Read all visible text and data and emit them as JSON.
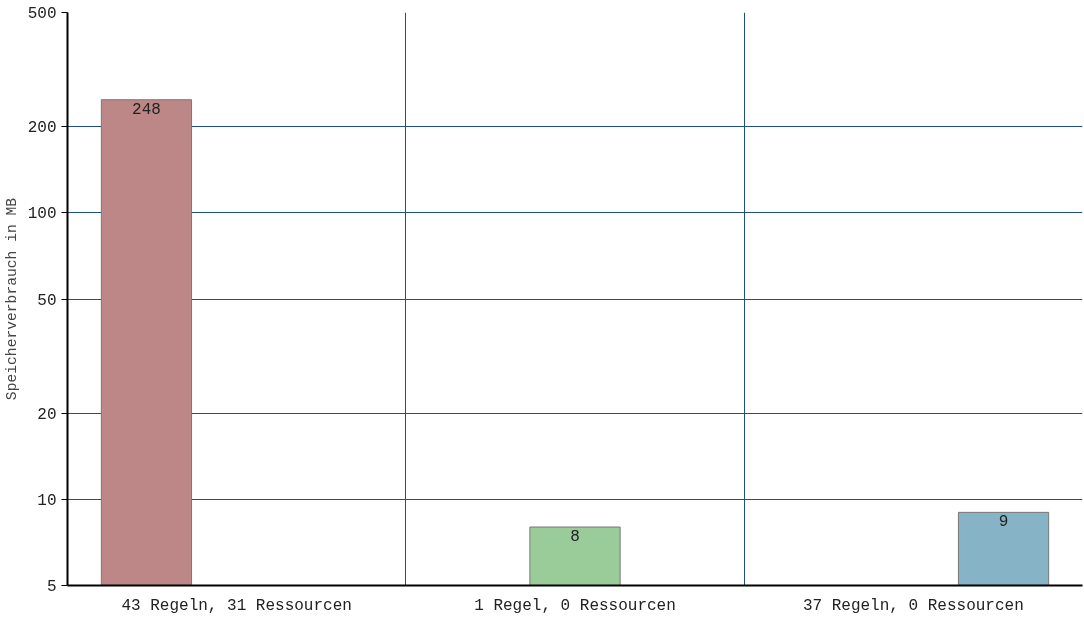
{
  "chart_data": {
    "type": "bar",
    "ylabel": "Speicherverbrauch in MB",
    "categories": [
      "43 Regeln, 31 Ressourcen",
      "1 Regel, 0 Ressourcen",
      "37 Regeln, 0 Ressourcen"
    ],
    "series": [
      {
        "color": "#bc8786",
        "values": [
          248,
          null,
          null
        ]
      },
      {
        "color": "#99cc99",
        "values": [
          null,
          8,
          null
        ]
      },
      {
        "color": "#86b3c5",
        "values": [
          null,
          null,
          9
        ]
      }
    ],
    "log": true,
    "ylim": [
      5,
      500
    ],
    "yticks": [
      5,
      10,
      20,
      50,
      100,
      200,
      500
    ],
    "grid": true,
    "data_labels": true
  }
}
